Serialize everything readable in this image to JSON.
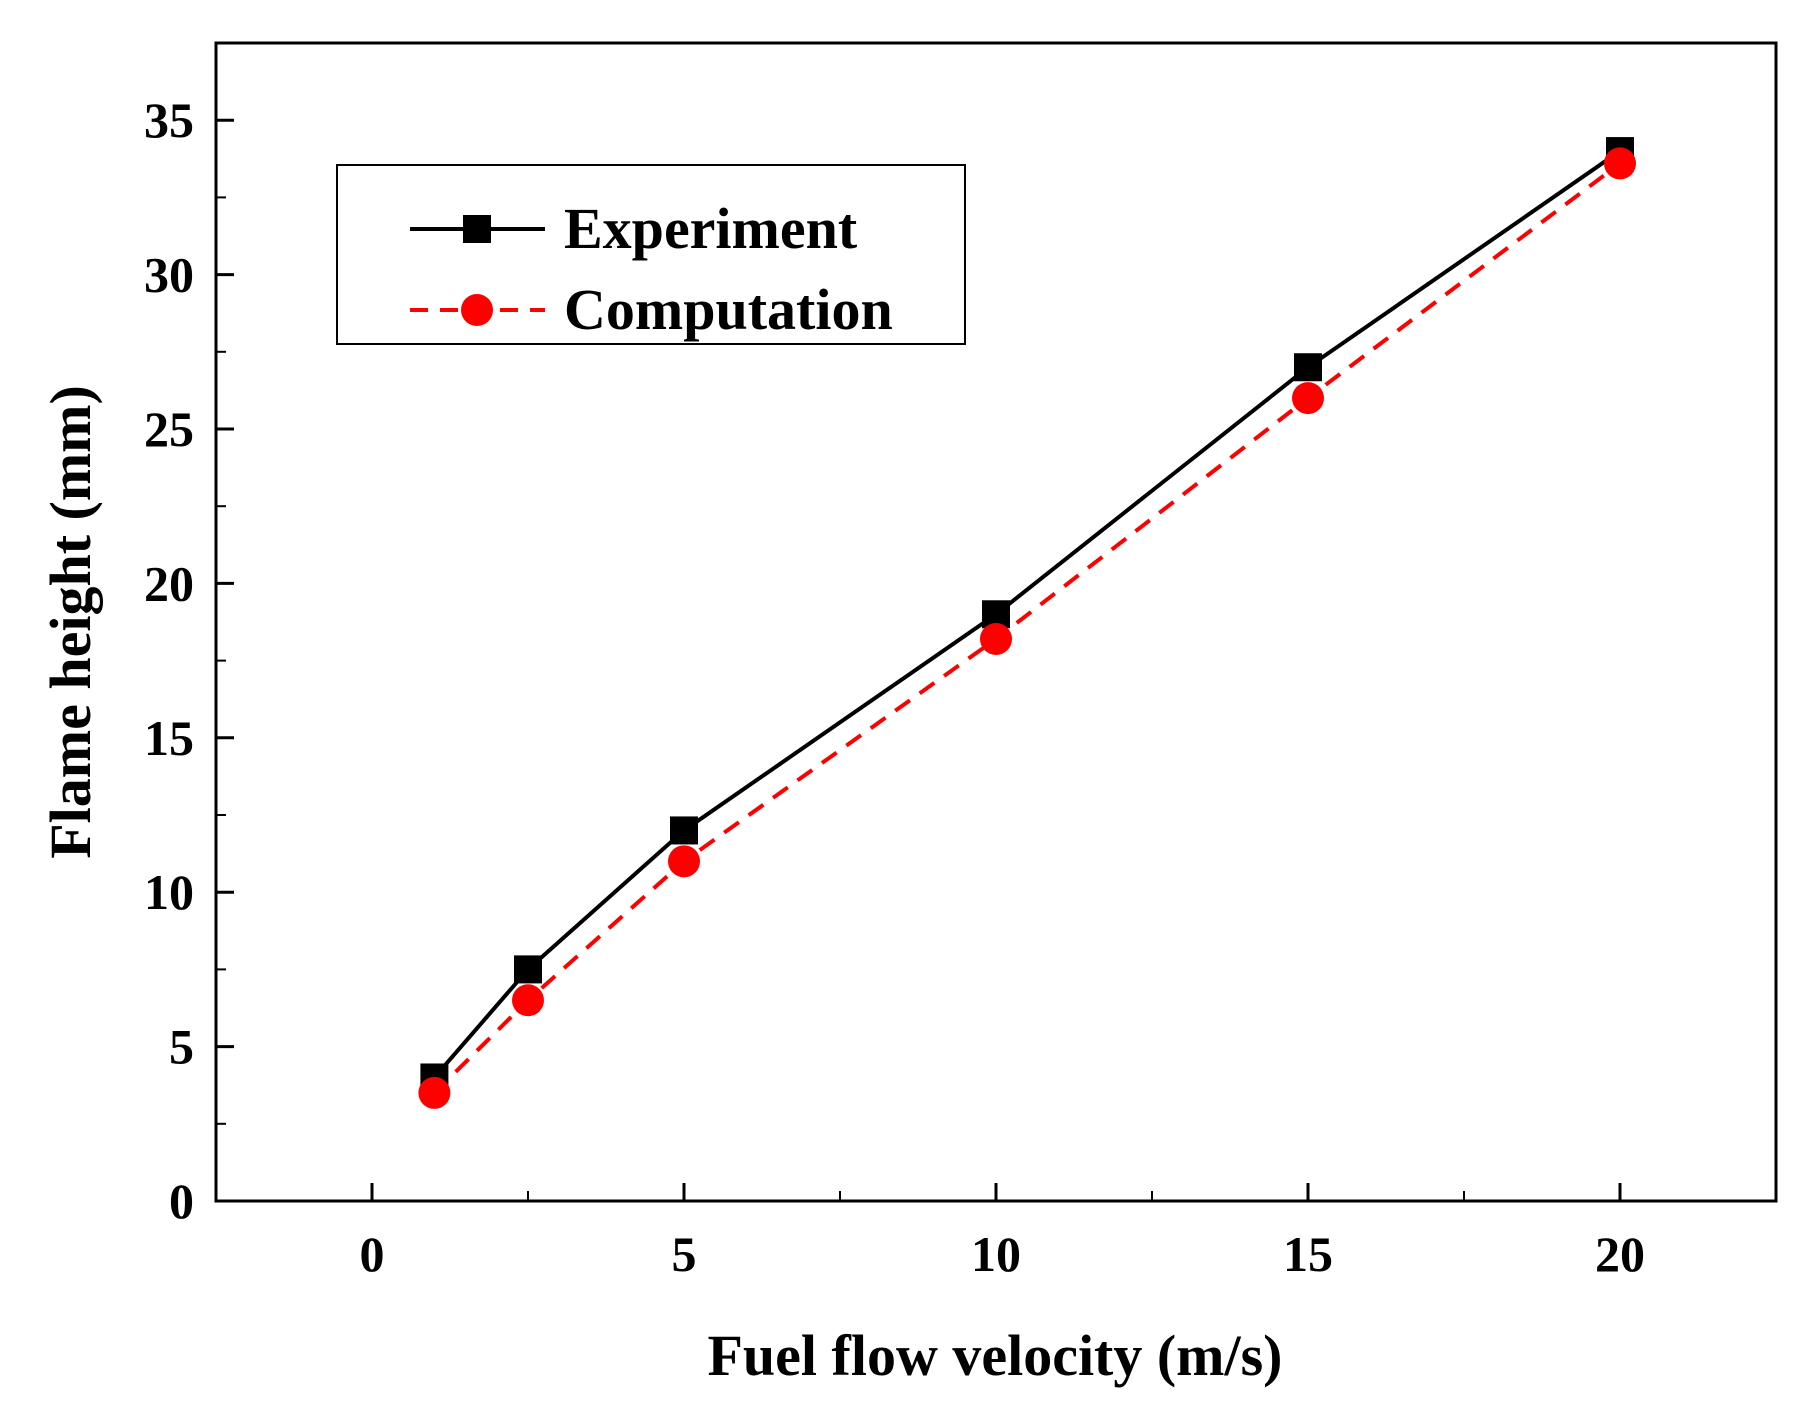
{
  "chart_data": {
    "type": "line",
    "title": "",
    "xlabel": "Fuel flow velocity (m/s)",
    "ylabel": "Flame height (mm)",
    "xlim": [
      -2.5,
      22.5
    ],
    "ylim": [
      0,
      37.5
    ],
    "x_ticks": [
      0,
      5,
      10,
      15,
      20
    ],
    "x_minor_ticks": [
      2.5,
      7.5,
      12.5,
      17.5
    ],
    "y_ticks": [
      0,
      5,
      10,
      15,
      20,
      25,
      30,
      35
    ],
    "y_minor_ticks": [
      2.5,
      7.5,
      12.5,
      17.5,
      22.5,
      27.5,
      32.5
    ],
    "grid": false,
    "legend_position": "top-left",
    "series": [
      {
        "name": "Experiment",
        "color": "#000000",
        "line_style": "solid",
        "marker": "square",
        "x": [
          1,
          2.5,
          5,
          10,
          15,
          20
        ],
        "y": [
          4.0,
          7.5,
          12.0,
          19.0,
          27.0,
          34.0
        ]
      },
      {
        "name": "Computation",
        "color": "#ff0000",
        "line_style": "dashed",
        "marker": "circle",
        "x": [
          1,
          2.5,
          5,
          10,
          15,
          20
        ],
        "y": [
          3.5,
          6.5,
          11.0,
          18.2,
          26.0,
          33.6
        ]
      }
    ]
  }
}
